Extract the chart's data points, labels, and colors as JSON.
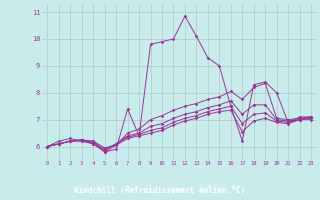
{
  "background_color": "#c8ecec",
  "grid_color": "#b0c8c8",
  "line_color": "#993399",
  "axis_bar_color": "#663366",
  "xlabel": "Windchill (Refroidissement éolien,°C)",
  "xlim": [
    -0.5,
    23.5
  ],
  "ylim": [
    5.5,
    11.3
  ],
  "xticks": [
    0,
    1,
    2,
    3,
    4,
    5,
    6,
    7,
    8,
    9,
    10,
    11,
    12,
    13,
    14,
    15,
    16,
    17,
    18,
    19,
    20,
    21,
    22,
    23
  ],
  "yticks": [
    6,
    7,
    8,
    9,
    10,
    11
  ],
  "lines": [
    [
      6.0,
      6.2,
      6.3,
      6.2,
      6.2,
      5.8,
      5.9,
      7.4,
      6.4,
      9.8,
      9.9,
      10.0,
      10.85,
      10.1,
      9.3,
      9.0,
      7.5,
      6.2,
      8.3,
      8.4,
      8.0,
      6.9,
      7.1,
      7.1
    ],
    [
      6.0,
      6.1,
      6.2,
      6.25,
      6.2,
      5.95,
      6.05,
      6.5,
      6.65,
      7.0,
      7.15,
      7.35,
      7.5,
      7.6,
      7.75,
      7.85,
      8.05,
      7.75,
      8.2,
      8.35,
      7.05,
      7.0,
      7.05,
      7.1
    ],
    [
      6.0,
      6.1,
      6.2,
      6.25,
      6.15,
      5.9,
      6.1,
      6.4,
      6.5,
      6.75,
      6.85,
      7.05,
      7.2,
      7.3,
      7.45,
      7.55,
      7.7,
      7.2,
      7.55,
      7.55,
      7.0,
      6.95,
      7.0,
      7.1
    ],
    [
      6.0,
      6.1,
      6.2,
      6.25,
      6.1,
      5.85,
      6.1,
      6.35,
      6.45,
      6.6,
      6.7,
      6.9,
      7.05,
      7.15,
      7.3,
      7.4,
      7.5,
      6.85,
      7.2,
      7.25,
      6.95,
      6.9,
      7.0,
      7.05
    ],
    [
      6.0,
      6.1,
      6.2,
      6.2,
      6.1,
      5.8,
      6.05,
      6.3,
      6.4,
      6.5,
      6.6,
      6.8,
      6.95,
      7.05,
      7.2,
      7.3,
      7.35,
      6.55,
      6.95,
      7.05,
      6.9,
      6.85,
      7.0,
      7.0
    ]
  ]
}
